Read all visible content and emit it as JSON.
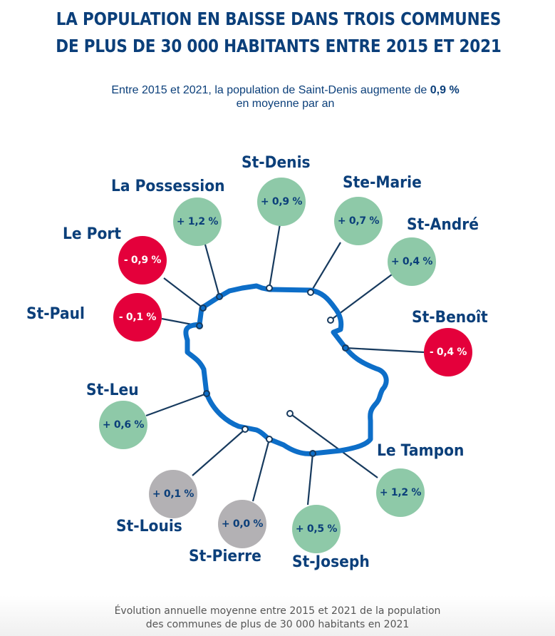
{
  "header": {
    "title_line1": "LA POPULATION EN BAISSE DANS TROIS COMMUNES",
    "title_line2": "DE PLUS DE 30 000 HABITANTS ENTRE 2015 ET 2021",
    "subtitle_prefix": "Entre 2015 et 2021, la population de Saint-Denis augmente de ",
    "subtitle_highlight": "0,9 %",
    "subtitle_line2": "en moyenne par an"
  },
  "colors": {
    "title": "#0b3f7a",
    "increase": "#8ec9a8",
    "decrease": "#e4003b",
    "stable": "#b3b1b4",
    "island_outline": "#0d6ec8",
    "connector": "#173a5e"
  },
  "communes": [
    {
      "name": "St-Denis",
      "value": "+ 0,9 %",
      "trend": "up"
    },
    {
      "name": "Ste-Marie",
      "value": "+ 0,7 %",
      "trend": "up"
    },
    {
      "name": "St-André",
      "value": "+ 0,4 %",
      "trend": "up"
    },
    {
      "name": "St-Benoît",
      "value": "- 0,4 %",
      "trend": "down"
    },
    {
      "name": "Le Tampon",
      "value": "+ 1,2 %",
      "trend": "up"
    },
    {
      "name": "St-Joseph",
      "value": "+ 0,5 %",
      "trend": "up"
    },
    {
      "name": "St-Pierre",
      "value": "+ 0,0 %",
      "trend": "flat"
    },
    {
      "name": "St-Louis",
      "value": "+ 0,1 %",
      "trend": "flat"
    },
    {
      "name": "St-Leu",
      "value": "+ 0,6 %",
      "trend": "up"
    },
    {
      "name": "St-Paul",
      "value": "- 0,1 %",
      "trend": "down"
    },
    {
      "name": "Le Port",
      "value": "- 0,9 %",
      "trend": "down"
    },
    {
      "name": "La Possession",
      "value": "+ 1,2 %",
      "trend": "up"
    }
  ],
  "caption": {
    "line1": "Évolution annuelle moyenne entre 2015 et 2021 de la population",
    "line2": "des communes de plus de 30 000 habitants en 2021"
  }
}
